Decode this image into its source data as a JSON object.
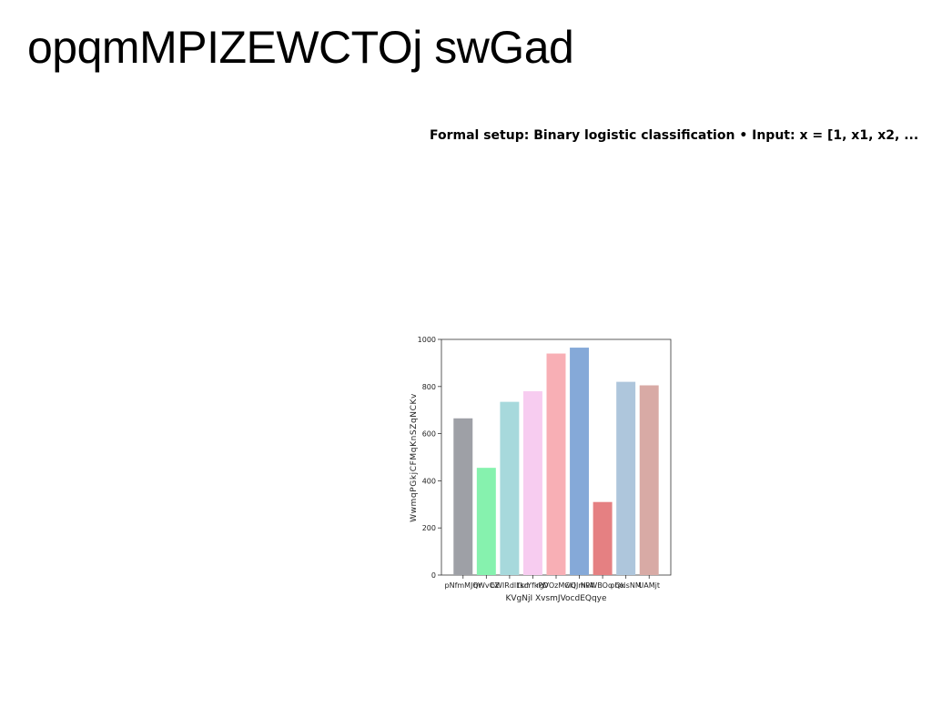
{
  "page": {
    "title": "opqmMPIZEWCTOj swGad",
    "subtitle": "Formal setup: Binary logistic classification • Input: x = [1, x1, x2, ..."
  },
  "chart_data": {
    "type": "bar",
    "categories": [
      "pNfmMJQr",
      "hWvCZ",
      "bWIRdlLsd",
      "fkrYfkPD",
      "rgVOzMCkl",
      "wQJmPA",
      "NvWBOq Qk",
      "ohoisNM",
      "UAMjt"
    ],
    "values": [
      665,
      455,
      735,
      780,
      940,
      965,
      310,
      820,
      805
    ],
    "colors": [
      "#9ea0a6",
      "#86f2ae",
      "#a7d9dc",
      "#f7ccf0",
      "#f8afb5",
      "#85a9d8",
      "#e58082",
      "#aec6dc",
      "#d8aaa5"
    ],
    "title": "",
    "xlabel": "KVgNjI XvsmJVocdEQqye",
    "ylabel": "WwmqPGkjCFMqKnSZqNCKv",
    "ylim": [
      0,
      1000
    ],
    "yticks": [
      0,
      200,
      400,
      600,
      800,
      1000
    ],
    "grid": false,
    "legend": "none"
  }
}
